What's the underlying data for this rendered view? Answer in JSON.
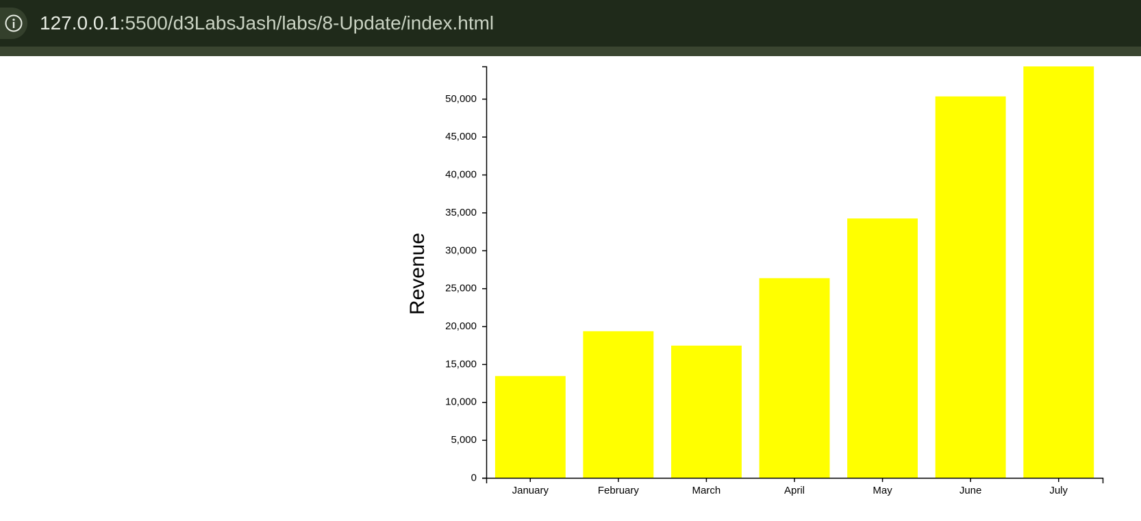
{
  "browser": {
    "url_host": "127.0.0.1",
    "url_rest": ":5500/d3LabsJash/labs/8-Update/index.html",
    "info_icon": "info-icon"
  },
  "chart_data": {
    "type": "bar",
    "categories": [
      "January",
      "February",
      "March",
      "April",
      "May",
      "June",
      "July"
    ],
    "values": [
      13432,
      19342,
      17443,
      26342,
      34213,
      50321,
      54273
    ],
    "ylabel": "Revenue",
    "xlabel": "",
    "ylim": [
      0,
      54273
    ],
    "yticks": [
      0,
      5000,
      10000,
      15000,
      20000,
      25000,
      30000,
      35000,
      40000,
      45000,
      50000
    ],
    "bar_color": "#ffff00"
  }
}
